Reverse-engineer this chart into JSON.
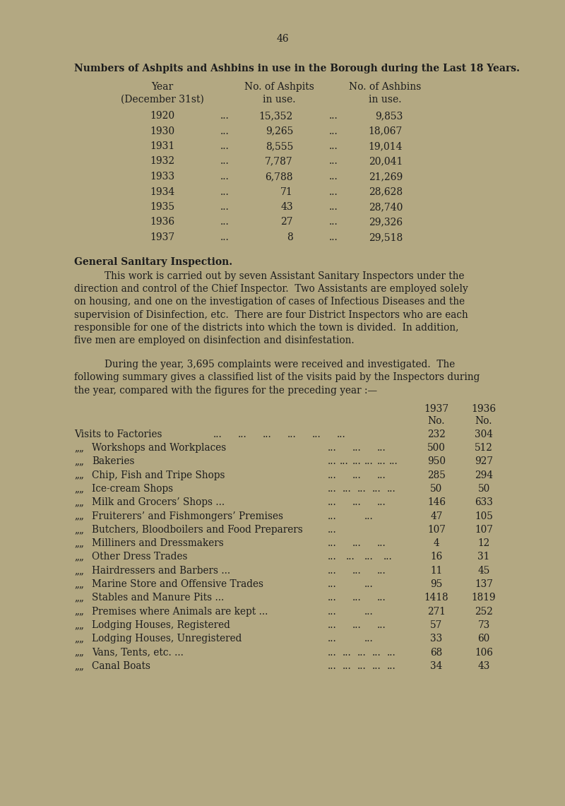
{
  "bg_color": "#b3a882",
  "text_color": "#1c1c1c",
  "page_number": "46",
  "table1_title": "Numbers of Ashpits and Ashbins in use in the Borough during the Last 18 Years.",
  "table1_rows": [
    [
      "1920",
      "15,352",
      "9,853"
    ],
    [
      "1930",
      "9,265",
      "18,067"
    ],
    [
      "1931",
      "8,555",
      "19,014"
    ],
    [
      "1932",
      "7,787",
      "20,041"
    ],
    [
      "1933",
      "6,788",
      "21,269"
    ],
    [
      "1934",
      "71",
      "28,628"
    ],
    [
      "1935",
      "43",
      "28,740"
    ],
    [
      "1936",
      "27",
      "29,326"
    ],
    [
      "1937",
      "8",
      "29,518"
    ]
  ],
  "section_title": "General Sanitary Inspection.",
  "para1_lines": [
    "This work is carried out by seven Assistant Sanitary Inspectors under the",
    "direction and control of the Chief Inspector.  Two Assistants are employed solely",
    "on housing, and one on the investigation of cases of Infectious Diseases and the",
    "supervision of Disinfection, etc.  There are four District Inspectors who are each",
    "responsible for one of the districts into which the town is divided.  In addition,",
    "five men are employed on disinfection and disinfestation."
  ],
  "para2_lines": [
    "During the year, 3,695 complaints were received and investigated.  The",
    "following summary gives a classified list of the visits paid by the Inspectors during",
    "the year, compared with the figures for the preceding year :—"
  ],
  "table2_data": [
    {
      "label": "Visits to Factories",
      "prefix": "main",
      "dots": "... ... ... ... ... ...",
      "v1937": "232",
      "v1936": "304"
    },
    {
      "label": "Workshops and Workplaces",
      "prefix": "„„",
      "dots": "... ... ...",
      "v1937": "500",
      "v1936": "512"
    },
    {
      "label": "Bakeries",
      "prefix": "„„",
      "dots": "... ... ... ... ... ...",
      "v1937": "950",
      "v1936": "927"
    },
    {
      "label": "Chip, Fish and Tripe Shops",
      "prefix": "„„",
      "dots": "... ... ...",
      "v1937": "285",
      "v1936": "294"
    },
    {
      "label": "Ice-cream Shops",
      "prefix": "„„",
      "dots": "... ... ... ... ...",
      "v1937": "50",
      "v1936": "50"
    },
    {
      "label": "Milk and Grocers’ Shops ...",
      "prefix": "„„",
      "dots": "... ... ...",
      "v1937": "146",
      "v1936": "633"
    },
    {
      "label": "Fruiterers’ and Fishmongers’ Premises",
      "prefix": "„„",
      "dots": "... ...",
      "v1937": "47",
      "v1936": "105"
    },
    {
      "label": "Butchers, Bloodboilers and Food Preparers",
      "prefix": "„„",
      "dots": "...",
      "v1937": "107",
      "v1936": "107"
    },
    {
      "label": "Milliners and Dressmakers",
      "prefix": "„„",
      "dots": "... ... ...",
      "v1937": "4",
      "v1936": "12"
    },
    {
      "label": "Other Dress Trades",
      "prefix": "„„",
      "dots": "... ... ... ...",
      "v1937": "16",
      "v1936": "31"
    },
    {
      "label": "Hairdressers and Barbers ...",
      "prefix": "„„",
      "dots": "... ... ...",
      "v1937": "11",
      "v1936": "45"
    },
    {
      "label": "Marine Store and Offensive Trades",
      "prefix": "„„",
      "dots": "... ...",
      "v1937": "95",
      "v1936": "137"
    },
    {
      "label": "Stables and Manure Pits ...",
      "prefix": "„„",
      "dots": "... ... ...",
      "v1937": "1418",
      "v1936": "1819"
    },
    {
      "label": "Premises where Animals are kept ...",
      "prefix": "„„",
      "dots": "... ...",
      "v1937": "271",
      "v1936": "252"
    },
    {
      "label": "Lodging Houses, Registered",
      "prefix": "„„",
      "dots": "... ... ...",
      "v1937": "57",
      "v1936": "73"
    },
    {
      "label": "Lodging Houses, Unregistered",
      "prefix": "„„",
      "dots": "... ...",
      "v1937": "33",
      "v1936": "60"
    },
    {
      "label": "Vans, Tents, etc. ...",
      "prefix": "„„",
      "dots": "... ... ... ... ...",
      "v1937": "68",
      "v1936": "106"
    },
    {
      "label": "Canal Boats",
      "prefix": "„„",
      "dots": "... ... ... ... ...",
      "v1937": "34",
      "v1936": "43"
    }
  ]
}
